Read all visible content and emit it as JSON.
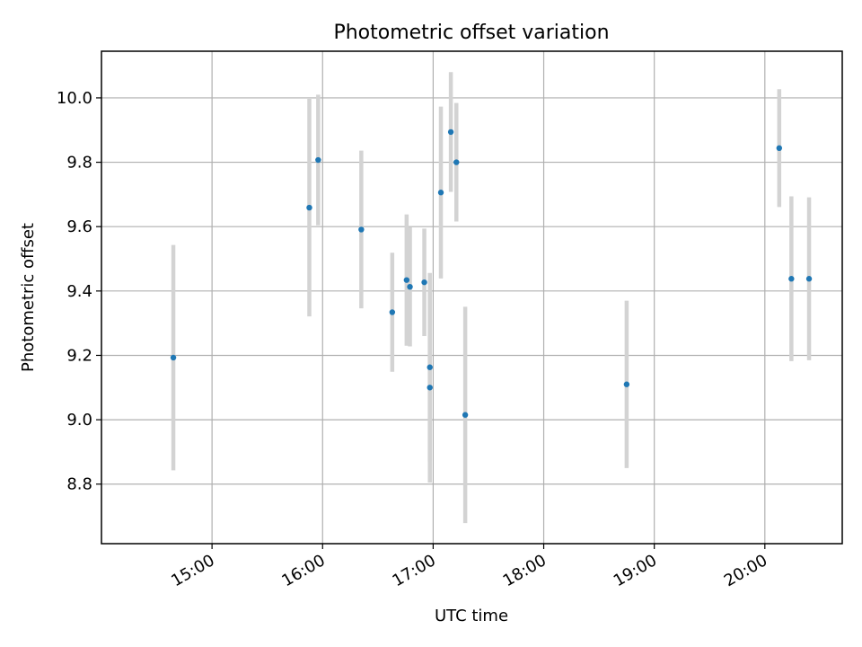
{
  "chart_data": {
    "type": "scatter",
    "title": "Photometric offset variation",
    "xlabel": "UTC time",
    "ylabel": "Photometric offset",
    "x_unit": "UTC hour of day (decimal)",
    "xlim": [
      14.0,
      20.7
    ],
    "ylim": [
      8.615,
      10.145
    ],
    "x_ticks": [
      15,
      16,
      17,
      18,
      19,
      20
    ],
    "x_tick_labels": [
      "15:00",
      "16:00",
      "17:00",
      "18:00",
      "19:00",
      "20:00"
    ],
    "y_ticks": [
      8.8,
      9.0,
      9.2,
      9.4,
      9.6,
      9.8,
      10.0
    ],
    "y_tick_labels": [
      "8.8",
      "9.0",
      "9.2",
      "9.4",
      "9.6",
      "9.8",
      "10.0"
    ],
    "grid": true,
    "legend": "none",
    "colors": {
      "point": "#1f77b4",
      "errorbar": "#d3d3d3",
      "grid": "#b0b0b0"
    },
    "points": [
      {
        "x": 14.65,
        "y": 9.193,
        "err": 0.35
      },
      {
        "x": 15.88,
        "y": 9.659,
        "err": 0.338
      },
      {
        "x": 15.96,
        "y": 9.807,
        "err": 0.203
      },
      {
        "x": 16.35,
        "y": 9.591,
        "err": 0.245
      },
      {
        "x": 16.63,
        "y": 9.334,
        "err": 0.185
      },
      {
        "x": 16.76,
        "y": 9.434,
        "err": 0.204
      },
      {
        "x": 16.79,
        "y": 9.413,
        "err": 0.185
      },
      {
        "x": 16.92,
        "y": 9.427,
        "err": 0.167
      },
      {
        "x": 16.97,
        "y": 9.163,
        "err": 0.293
      },
      {
        "x": 16.97,
        "y": 9.1,
        "err": 0.295
      },
      {
        "x": 17.07,
        "y": 9.706,
        "err": 0.267
      },
      {
        "x": 17.16,
        "y": 9.894,
        "err": 0.186
      },
      {
        "x": 17.21,
        "y": 9.8,
        "err": 0.184
      },
      {
        "x": 17.29,
        "y": 9.015,
        "err": 0.336
      },
      {
        "x": 18.75,
        "y": 9.11,
        "err": 0.26
      },
      {
        "x": 20.13,
        "y": 9.844,
        "err": 0.183
      },
      {
        "x": 20.24,
        "y": 9.438,
        "err": 0.256
      },
      {
        "x": 20.4,
        "y": 9.438,
        "err": 0.253
      }
    ]
  }
}
